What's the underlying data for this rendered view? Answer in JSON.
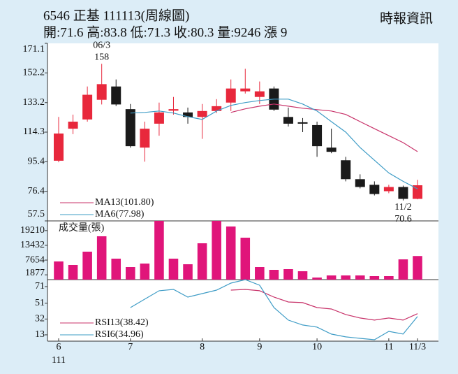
{
  "header": {
    "title": "6546 正基 111113(周線圖)",
    "quote": "開:71.6 高:83.8 低:71.3 收:80.3 量:9246 漲 9",
    "source": "時報資訊"
  },
  "chart_data": [
    {
      "type": "candlestick",
      "categories": [
        "6",
        null,
        null,
        null,
        null,
        "7",
        null,
        null,
        null,
        null,
        "8",
        null,
        null,
        null,
        "9",
        null,
        null,
        null,
        "10",
        null,
        null,
        null,
        null,
        "11",
        null,
        "11/3"
      ],
      "x_sublabel": "111",
      "open": [
        96.0,
        116.5,
        122.4,
        135.0,
        143.5,
        129.0,
        104.4,
        119.7,
        128.0,
        126.9,
        124.0,
        127.8,
        133.2,
        140.4,
        136.8,
        142.2,
        124.0,
        120.6,
        118.8,
        104.4,
        96.3,
        84.2,
        80.6,
        76.5,
        79.2,
        71.6
      ],
      "high": [
        124.0,
        125.5,
        143.5,
        158,
        148.0,
        132.3,
        121.0,
        133.2,
        136.8,
        130.0,
        132.3,
        135.4,
        148.0,
        154.8,
        146.7,
        143.5,
        130.0,
        123.3,
        121.0,
        116.5,
        98.5,
        87.3,
        82.8,
        80.6,
        80.1,
        83.8
      ],
      "low": [
        95.0,
        113.0,
        121.0,
        132.0,
        131.0,
        104.4,
        95.4,
        112.0,
        125.5,
        119.7,
        110.0,
        126.5,
        127.8,
        139.0,
        132.3,
        127.8,
        117.9,
        114.3,
        98.5,
        100.8,
        82.8,
        78.3,
        73.8,
        75.2,
        70.6,
        71.3
      ],
      "close": [
        113.4,
        121.0,
        138.2,
        145.0,
        132.0,
        105.3,
        116.5,
        126.9,
        129.0,
        124.0,
        127.8,
        130.9,
        142.2,
        142.2,
        140.4,
        128.7,
        119.7,
        119.7,
        105.3,
        101.7,
        84.2,
        79.2,
        74.7,
        79.2,
        71.6,
        80.3
      ],
      "up_color": "#e8283c",
      "down_color": "#1a1a1a",
      "annotations": {
        "high": [
          "06/3",
          "158"
        ],
        "low": [
          "11/2",
          "70.6"
        ]
      },
      "series": [
        {
          "name": "MA13(101.80)",
          "color": "#c8336a",
          "values": [
            null,
            null,
            null,
            null,
            null,
            null,
            null,
            null,
            null,
            null,
            null,
            null,
            126.9,
            129.2,
            130.9,
            132.3,
            130.9,
            129.6,
            128.7,
            127.8,
            125.6,
            121.0,
            116.5,
            112.0,
            107.6,
            101.8
          ]
        },
        {
          "name": "MA6(77.98)",
          "color": "#3e9cc6",
          "values": [
            null,
            null,
            null,
            null,
            null,
            126.5,
            126.9,
            127.8,
            126.5,
            124.2,
            122.4,
            127.8,
            131.4,
            133.2,
            134.5,
            135.4,
            135.4,
            132.3,
            127.8,
            121.0,
            114.3,
            104.4,
            96.3,
            88.2,
            82.8,
            77.98
          ]
        }
      ],
      "ylim": [
        57.5,
        171.1
      ],
      "yticks": [
        57.5,
        76.4,
        95.4,
        114.3,
        133.2,
        152.2,
        171.1
      ]
    },
    {
      "type": "bar",
      "title": "成交量(張)",
      "color": "#e0157a",
      "values": [
        7119,
        5750,
        10952,
        16976,
        8214,
        4928,
        6297,
        23000,
        8214,
        6024,
        14238,
        23000,
        20809,
        16428,
        4928,
        3833,
        4107,
        3286,
        821,
        1643,
        1643,
        1643,
        1369,
        1369,
        7940,
        9246
      ],
      "ylim": [
        0,
        23000
      ],
      "yticks": [
        1877,
        7654,
        13432,
        19210
      ]
    },
    {
      "type": "line",
      "series": [
        {
          "name": "RSI13(38.42)",
          "color": "#c8336a",
          "values": [
            null,
            null,
            null,
            null,
            null,
            null,
            null,
            null,
            null,
            null,
            null,
            null,
            66.8,
            67.6,
            66.0,
            58.4,
            52.5,
            51.7,
            45.8,
            44.1,
            37.4,
            33.2,
            30.7,
            33.2,
            30.7,
            38.42
          ]
        },
        {
          "name": "RSI6(34.96)",
          "color": "#3e9cc6",
          "values": [
            null,
            null,
            null,
            null,
            null,
            45.8,
            55.9,
            66.0,
            67.6,
            58.4,
            62.6,
            66.8,
            75.2,
            79.4,
            72.7,
            45.8,
            30.7,
            24.8,
            22.3,
            13.9,
            10.5,
            8.8,
            7.1,
            17.2,
            13.9,
            34.96
          ]
        }
      ],
      "ylim": [
        5.4,
        79.4
      ],
      "yticks": [
        13,
        32,
        51,
        71
      ]
    }
  ]
}
